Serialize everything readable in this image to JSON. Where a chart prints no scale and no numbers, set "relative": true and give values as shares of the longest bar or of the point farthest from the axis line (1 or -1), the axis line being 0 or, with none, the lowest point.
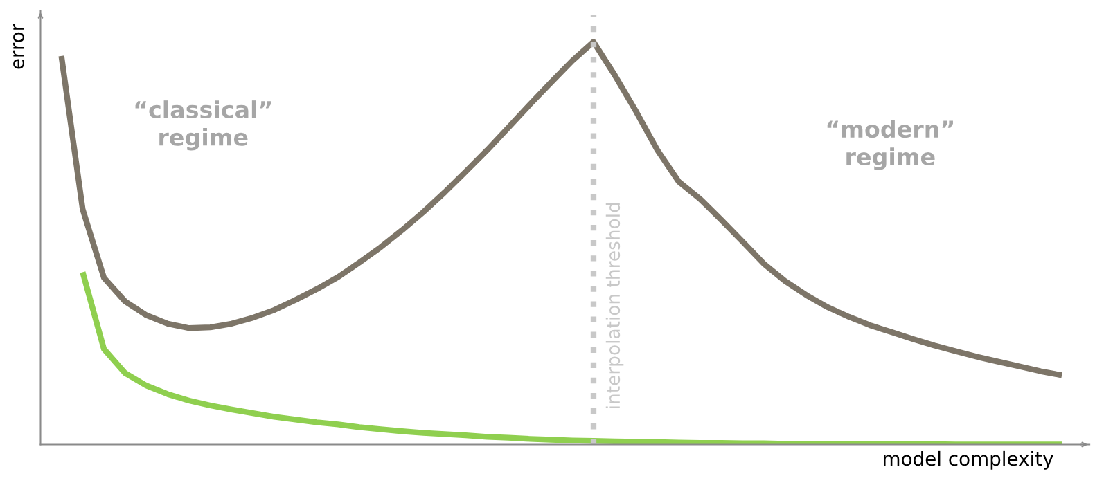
{
  "chart_data": {
    "type": "line",
    "relative": true,
    "xlabel": "model complexity",
    "ylabel": "error",
    "categories": [
      null,
      null,
      null,
      null,
      null,
      null,
      null,
      null,
      null,
      null,
      null,
      null,
      null,
      null,
      null,
      null,
      null,
      null,
      null,
      null,
      null,
      null,
      null,
      null,
      null,
      null,
      null,
      null,
      null,
      null,
      null,
      null,
      null,
      null,
      null,
      null,
      null,
      null,
      null,
      null,
      null,
      null,
      null,
      null,
      null,
      null,
      null,
      null
    ],
    "series": [
      {
        "color": "#7d7568",
        "values": [
          0.965,
          0.584,
          0.414,
          0.355,
          0.321,
          0.3,
          0.289,
          0.291,
          0.3,
          0.315,
          0.334,
          0.359,
          0.386,
          0.416,
          0.452,
          0.49,
          0.532,
          0.577,
          0.626,
          0.678,
          0.731,
          0.787,
          0.844,
          0.899,
          0.953,
          1,
          0.917,
          0.827,
          0.731,
          0.653,
          0.61,
          0.558,
          0.504,
          0.449,
          0.406,
          0.371,
          0.341,
          0.317,
          0.296,
          0.279,
          0.262,
          0.246,
          0.232,
          0.218,
          0.206,
          0.194,
          0.182,
          0.172
        ]
      },
      {
        "color": "#8fcf4f",
        "values": [
          null,
          0.428,
          0.237,
          0.177,
          0.146,
          0.125,
          0.109,
          0.097,
          0.087,
          0.078,
          0.069,
          0.062,
          0.055,
          0.05,
          0.043,
          0.038,
          0.033,
          0.029,
          0.026,
          0.023,
          0.019,
          0.017,
          0.014,
          0.012,
          0.01,
          0.009,
          0.008,
          0.007,
          0.006,
          0.005,
          0.004,
          0.004,
          0.003,
          0.003,
          0.002,
          0.002,
          0.002,
          0.001,
          0.001,
          0.001,
          0.001,
          0.001,
          0,
          0,
          0,
          0,
          0,
          0
        ]
      }
    ],
    "annotations": [
      "“classical”\nregime",
      "“modern”\nregime",
      "interpolation threshold"
    ],
    "marker": "none",
    "line_style": "solid"
  }
}
